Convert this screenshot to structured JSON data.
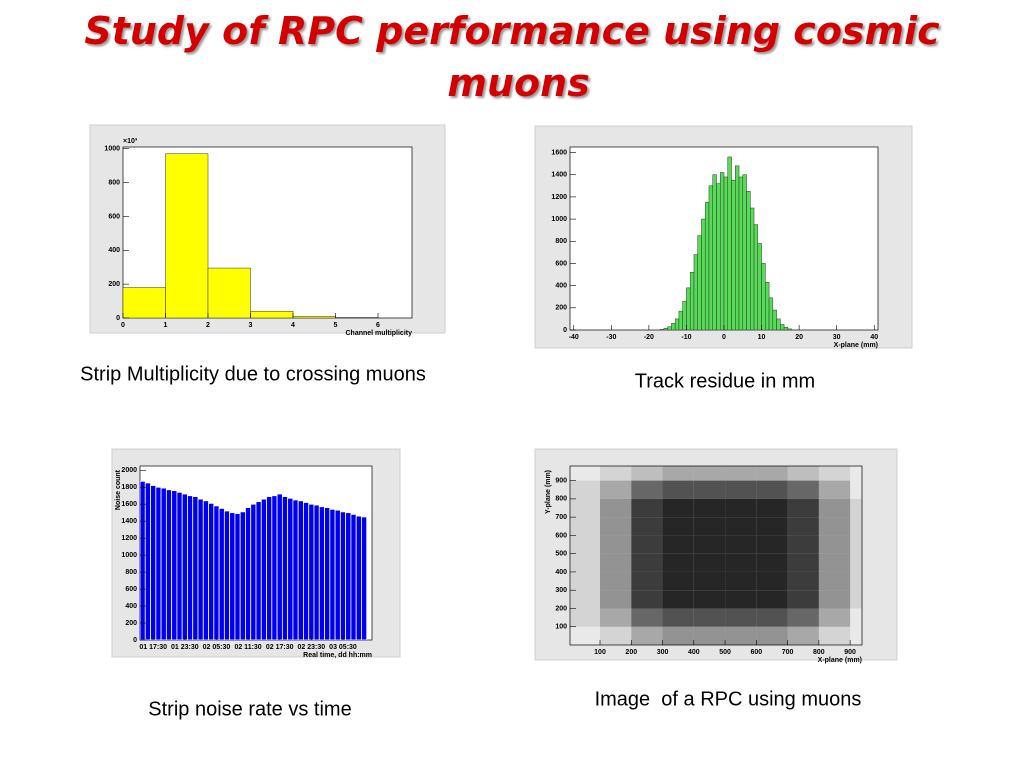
{
  "title": "Study of RPC performance using cosmic muons",
  "chart_data": [
    {
      "type": "histogram",
      "caption": "Strip Multiplicity due to crossing muons",
      "x_label": "Channel multiplicity",
      "multiplier": "×10³",
      "bins": [
        0,
        1,
        2,
        3,
        4,
        5,
        6
      ],
      "values": [
        180,
        970,
        295,
        40,
        10,
        3
      ],
      "color": "#ffff00",
      "xlim": [
        0,
        6.8
      ],
      "xticks": [
        0,
        1,
        2,
        3,
        4,
        5,
        6
      ],
      "ylim": [
        0,
        1010
      ],
      "yticks": [
        0,
        200,
        400,
        600,
        800,
        1000
      ]
    },
    {
      "type": "histogram",
      "caption": "Track residue in mm",
      "x_label": "X-plane (mm)",
      "bins": [
        -17,
        -16,
        -15,
        -14,
        -13,
        -12,
        -11,
        -10,
        -9,
        -8,
        -7,
        -6,
        -5,
        -4,
        -3,
        -2,
        -1,
        0,
        1,
        2,
        3,
        4,
        5,
        6,
        7,
        8,
        9,
        10,
        11,
        12,
        13,
        14,
        15,
        16,
        17,
        18
      ],
      "values": [
        5,
        15,
        30,
        60,
        100,
        170,
        260,
        380,
        520,
        680,
        850,
        1000,
        1150,
        1300,
        1400,
        1320,
        1420,
        1380,
        1560,
        1350,
        1480,
        1380,
        1400,
        1250,
        1100,
        950,
        780,
        600,
        430,
        290,
        180,
        100,
        50,
        25,
        10
      ],
      "color": "#55dd55",
      "xlim": [
        -41,
        41
      ],
      "xticks": [
        -40,
        -30,
        -20,
        -10,
        0,
        10,
        20,
        30,
        40
      ],
      "ylim": [
        0,
        1650
      ],
      "yticks": [
        0,
        200,
        400,
        600,
        800,
        1000,
        1200,
        1400,
        1600
      ]
    },
    {
      "type": "histogram",
      "caption": "Strip noise rate vs time",
      "x_label": "Real time, dd hh:mm",
      "y_label": "Noise count",
      "bins": [
        0,
        1,
        2,
        3,
        4,
        5,
        6,
        7,
        8,
        9,
        10,
        11,
        12,
        13,
        14,
        15,
        16,
        17,
        18,
        19,
        20,
        21,
        22,
        23,
        24,
        25,
        26,
        27,
        28,
        29,
        30,
        31,
        32,
        33,
        34,
        35,
        36,
        37,
        38,
        39,
        40,
        41,
        42,
        43
      ],
      "values": [
        1870,
        1850,
        1820,
        1800,
        1790,
        1770,
        1760,
        1740,
        1720,
        1700,
        1690,
        1660,
        1640,
        1610,
        1580,
        1550,
        1520,
        1500,
        1490,
        1510,
        1560,
        1600,
        1630,
        1660,
        1690,
        1700,
        1720,
        1690,
        1670,
        1650,
        1640,
        1620,
        1600,
        1590,
        1570,
        1560,
        1540,
        1530,
        1510,
        1500,
        1480,
        1460,
        1450
      ],
      "color": "#0000ee",
      "xlim": [
        0,
        44
      ],
      "xticks": [
        {
          "value": 2.5,
          "label": "01 17:30"
        },
        {
          "value": 8.5,
          "label": "01 23:30"
        },
        {
          "value": 14.5,
          "label": "02 05:30"
        },
        {
          "value": 20.5,
          "label": "02 11:30"
        },
        {
          "value": 26.5,
          "label": "02 17:30"
        },
        {
          "value": 32.5,
          "label": "02 23:30"
        },
        {
          "value": 38.5,
          "label": "03 05:30"
        }
      ],
      "ylim": [
        0,
        2050
      ],
      "yticks": [
        0,
        200,
        400,
        600,
        800,
        1000,
        1200,
        1400,
        1600,
        1800,
        2000
      ]
    },
    {
      "type": "heatmap",
      "caption": "Image  of a RPC using muons",
      "x_label": "X-plane (mm)",
      "y_label": "Y-plane (mm)",
      "xbins": [
        0,
        100,
        200,
        300,
        400,
        500,
        600,
        700,
        800,
        900,
        1000
      ],
      "ybins": [
        0,
        100,
        200,
        300,
        400,
        500,
        600,
        700,
        800,
        900,
        1000
      ],
      "z": [
        [
          1,
          2,
          4,
          5,
          5,
          5,
          5,
          4,
          2,
          1
        ],
        [
          2,
          4,
          7,
          8,
          8,
          8,
          8,
          7,
          4,
          1
        ],
        [
          2,
          5,
          9,
          10,
          10,
          10,
          10,
          9,
          5,
          2
        ],
        [
          2,
          5,
          9,
          10,
          10,
          10,
          10,
          9,
          5,
          2
        ],
        [
          2,
          5,
          9,
          10,
          10,
          10,
          10,
          9,
          5,
          2
        ],
        [
          2,
          5,
          9,
          10,
          10,
          10,
          10,
          9,
          5,
          2
        ],
        [
          2,
          5,
          9,
          10,
          10,
          10,
          10,
          9,
          5,
          2
        ],
        [
          2,
          5,
          9,
          10,
          10,
          10,
          10,
          9,
          5,
          2
        ],
        [
          2,
          4,
          7,
          8,
          8,
          8,
          8,
          7,
          4,
          1
        ],
        [
          1,
          2,
          3,
          4,
          4,
          4,
          4,
          3,
          2,
          1
        ]
      ],
      "color": "#000000",
      "xlim": [
        4,
        938
      ],
      "xticks": [
        100,
        200,
        300,
        400,
        500,
        600,
        700,
        800,
        900
      ],
      "ylim": [
        0,
        980
      ],
      "yticks": [
        100,
        200,
        300,
        400,
        500,
        600,
        700,
        800,
        900
      ]
    }
  ]
}
